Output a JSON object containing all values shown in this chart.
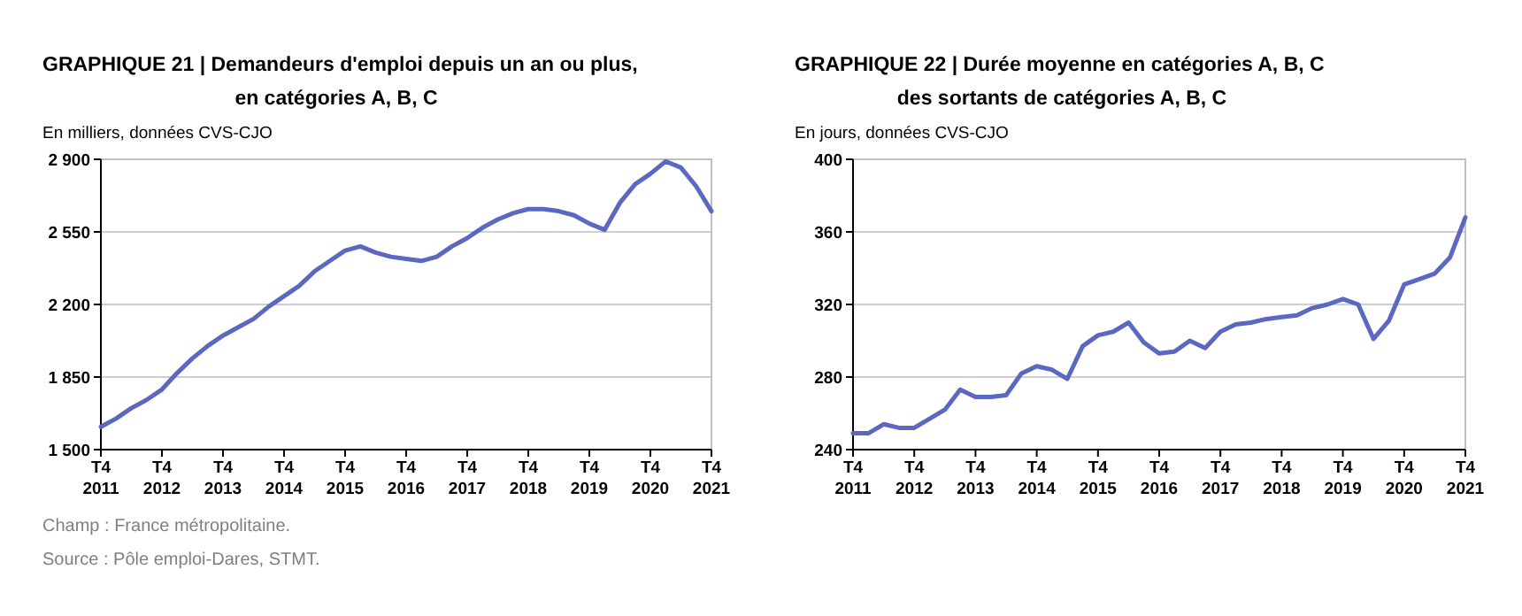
{
  "chart_data": [
    {
      "type": "line",
      "title": "GRAPHIQUE 21 | Demandeurs d'emploi depuis un an ou plus,\nen catégories A, B, C",
      "ylabel": "En milliers, données CVS-CJO",
      "categories": [
        "T4 2011",
        null,
        null,
        null,
        "T4 2012",
        null,
        null,
        null,
        "T4 2013",
        null,
        null,
        null,
        "T4 2014",
        null,
        null,
        null,
        "T4 2015",
        null,
        null,
        null,
        "T4 2016",
        null,
        null,
        null,
        "T4 2017",
        null,
        null,
        null,
        "T4 2018",
        null,
        null,
        null,
        "T4 2019",
        null,
        null,
        null,
        "T4 2020",
        null,
        null,
        null,
        "T4 2021"
      ],
      "series": [
        {
          "color": "#5b67c0",
          "values": [
            1610,
            1650,
            1700,
            1740,
            1790,
            1870,
            1940,
            2000,
            2050,
            2090,
            2130,
            2190,
            2240,
            2290,
            2360,
            2410,
            2460,
            2480,
            2450,
            2430,
            2420,
            2410,
            2430,
            2480,
            2520,
            2570,
            2610,
            2640,
            2660,
            2660,
            2650,
            2630,
            2590,
            2560,
            2690,
            2780,
            2830,
            2890,
            2860,
            2770,
            2650
          ]
        }
      ],
      "ylim": [
        1500,
        2900
      ],
      "yticks": [
        {
          "value": 1500,
          "label": "1 500"
        },
        {
          "value": 1850,
          "label": "1 850"
        },
        {
          "value": 2200,
          "label": "2 200"
        },
        {
          "value": 2550,
          "label": "2 550"
        },
        {
          "value": 2900,
          "label": "2 900"
        }
      ],
      "grid": "y",
      "marker": "none",
      "line_style": "solid",
      "annotations": [
        "Champ : France métropolitaine.",
        "Source : Pôle emploi-Dares, STMT."
      ]
    },
    {
      "type": "line",
      "title": "GRAPHIQUE 22 | Durée moyenne en catégories A, B, C\ndes sortants de catégories A, B, C",
      "ylabel": "En jours, données CVS-CJO",
      "categories": [
        "T4 2011",
        null,
        null,
        null,
        "T4 2012",
        null,
        null,
        null,
        "T4 2013",
        null,
        null,
        null,
        "T4 2014",
        null,
        null,
        null,
        "T4 2015",
        null,
        null,
        null,
        "T4 2016",
        null,
        null,
        null,
        "T4 2017",
        null,
        null,
        null,
        "T4 2018",
        null,
        null,
        null,
        "T4 2019",
        null,
        null,
        null,
        "T4 2020",
        null,
        null,
        null,
        "T4 2021"
      ],
      "series": [
        {
          "color": "#5b67c0",
          "values": [
            249,
            249,
            254,
            252,
            252,
            257,
            262,
            273,
            269,
            269,
            270,
            282,
            286,
            284,
            279,
            297,
            303,
            305,
            310,
            299,
            293,
            294,
            300,
            296,
            305,
            309,
            310,
            312,
            313,
            314,
            318,
            320,
            323,
            320,
            301,
            311,
            331,
            334,
            337,
            346,
            368
          ]
        }
      ],
      "ylim": [
        240,
        400
      ],
      "yticks": [
        240,
        280,
        320,
        360,
        400
      ],
      "grid": "y",
      "marker": "none",
      "line_style": "solid"
    }
  ]
}
